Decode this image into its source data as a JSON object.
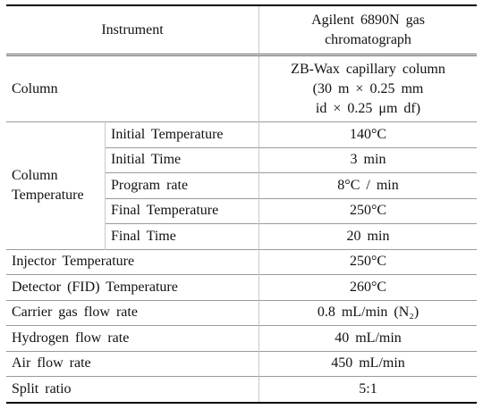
{
  "table": {
    "header": [
      "Instrument",
      [
        "Agilent 6890N gas",
        "chromatograph"
      ]
    ],
    "column": {
      "label": "Column",
      "value": [
        "ZB-Wax capillary column",
        "(30 m × 0.25 mm",
        "id × 0.25 μm df)"
      ]
    },
    "column_temperature": {
      "label": [
        "Column",
        "Temperature"
      ],
      "rows": [
        [
          "Initial Temperature",
          "140°C"
        ],
        [
          "Initial Time",
          "3 min"
        ],
        [
          "Program rate",
          "8°C / min"
        ],
        [
          "Final Temperature",
          "250°C"
        ],
        [
          "Final Time",
          "20 min"
        ]
      ]
    },
    "rows": [
      [
        "Injector Temperature",
        "250°C"
      ],
      [
        "Detector (FID) Temperature",
        "260°C"
      ],
      [
        "Carrier gas flow rate",
        "0.8 mL/min (N₂)"
      ],
      [
        "Hydrogen flow rate",
        "40 mL/min"
      ],
      [
        "Air flow rate",
        "450 mL/min"
      ],
      [
        "Split ratio",
        "5:1"
      ]
    ]
  }
}
